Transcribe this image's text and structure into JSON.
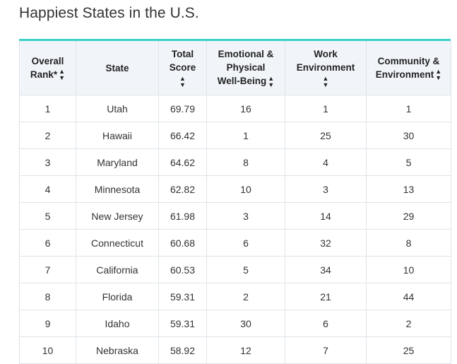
{
  "page_title": "Happiest States in the U.S.",
  "colors": {
    "accent_border": "#3ccfc4",
    "header_bg": "#f1f5f9",
    "grid_line": "#dfe3e8"
  },
  "table": {
    "headers": [
      {
        "line1": "Overall",
        "line2": "Rank*",
        "line3": "",
        "sort_icon": "sort-updown-icon"
      },
      {
        "line1": "State",
        "line2": "",
        "line3": "",
        "sort_icon": ""
      },
      {
        "line1": "Total",
        "line2": "Score",
        "line3": "",
        "sort_icon": "sort-updown-icon"
      },
      {
        "line1": "Emotional &",
        "line2": "Physical",
        "line3": "Well-Being",
        "sort_icon": "sort-updown-icon"
      },
      {
        "line1": "Work",
        "line2": "Environment",
        "line3": "",
        "sort_icon": "sort-updown-icon"
      },
      {
        "line1": "Community &",
        "line2": "Environment",
        "line3": "",
        "sort_icon": "sort-updown-icon"
      }
    ],
    "rows": [
      {
        "rank": "1",
        "state": "Utah",
        "total": "69.79",
        "emotional": "16",
        "work": "1",
        "community": "1"
      },
      {
        "rank": "2",
        "state": "Hawaii",
        "total": "66.42",
        "emotional": "1",
        "work": "25",
        "community": "30"
      },
      {
        "rank": "3",
        "state": "Maryland",
        "total": "64.62",
        "emotional": "8",
        "work": "4",
        "community": "5"
      },
      {
        "rank": "4",
        "state": "Minnesota",
        "total": "62.82",
        "emotional": "10",
        "work": "3",
        "community": "13"
      },
      {
        "rank": "5",
        "state": "New Jersey",
        "total": "61.98",
        "emotional": "3",
        "work": "14",
        "community": "29"
      },
      {
        "rank": "6",
        "state": "Connecticut",
        "total": "60.68",
        "emotional": "6",
        "work": "32",
        "community": "8"
      },
      {
        "rank": "7",
        "state": "California",
        "total": "60.53",
        "emotional": "5",
        "work": "34",
        "community": "10"
      },
      {
        "rank": "8",
        "state": "Florida",
        "total": "59.31",
        "emotional": "2",
        "work": "21",
        "community": "44"
      },
      {
        "rank": "9",
        "state": "Idaho",
        "total": "59.31",
        "emotional": "30",
        "work": "6",
        "community": "2"
      },
      {
        "rank": "10",
        "state": "Nebraska",
        "total": "58.92",
        "emotional": "12",
        "work": "7",
        "community": "25"
      }
    ]
  }
}
